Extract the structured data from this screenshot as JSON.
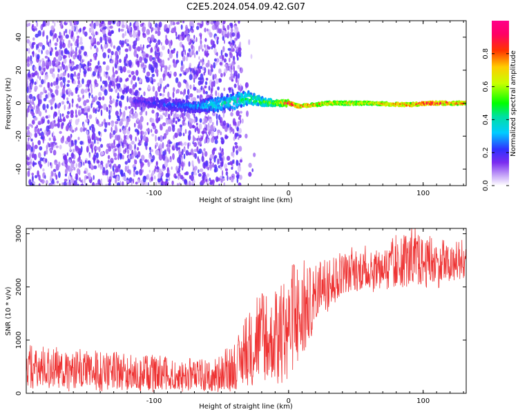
{
  "title": "C2E5.2024.054.09.42.G07",
  "chart_data": [
    {
      "type": "heatmap",
      "xlabel": "Height of straight line (km)",
      "ylabel": "Frequency (Hz)",
      "xlim": [
        -195,
        132
      ],
      "ylim": [
        -50,
        50
      ],
      "xticks": [
        -100,
        0,
        100
      ],
      "yticks": [
        -40,
        -20,
        0,
        20,
        40
      ],
      "signal_band": [
        {
          "x": -110,
          "y": 1,
          "w": 3,
          "amp": 0.2
        },
        {
          "x": -90,
          "y": -1,
          "w": 4,
          "amp": 0.25
        },
        {
          "x": -70,
          "y": -2,
          "w": 4,
          "amp": 0.3
        },
        {
          "x": -55,
          "y": -1,
          "w": 5,
          "amp": 0.4
        },
        {
          "x": -40,
          "y": 1,
          "w": 6,
          "amp": 0.45
        },
        {
          "x": -30,
          "y": 3,
          "w": 5,
          "amp": 0.5
        },
        {
          "x": -20,
          "y": 1,
          "w": 3,
          "amp": 0.55
        },
        {
          "x": -10,
          "y": 0,
          "w": 2,
          "amp": 0.65
        },
        {
          "x": 0,
          "y": 0,
          "w": 2,
          "amp": 0.95
        },
        {
          "x": 8,
          "y": -2,
          "w": 2,
          "amp": 0.85
        },
        {
          "x": 30,
          "y": 0,
          "w": 2,
          "amp": 0.75
        },
        {
          "x": 60,
          "y": 0,
          "w": 2,
          "amp": 0.72
        },
        {
          "x": 90,
          "y": -1,
          "w": 2,
          "amp": 0.85
        },
        {
          "x": 105,
          "y": 0,
          "w": 2,
          "amp": 0.95
        },
        {
          "x": 132,
          "y": 0,
          "w": 2,
          "amp": 0.8
        }
      ]
    },
    {
      "type": "line",
      "xlabel": "Height of straight line (km)",
      "ylabel": "SNR (10 * v/v)",
      "xlim": [
        -195,
        132
      ],
      "ylim": [
        0,
        3100
      ],
      "xticks": [
        -100,
        0,
        100
      ],
      "yticks": [
        0,
        1000,
        2000,
        3000
      ],
      "series": [
        {
          "color": "#ee3333",
          "envelope": [
            {
              "x": -195,
              "low": 50,
              "high": 900
            },
            {
              "x": -150,
              "low": 30,
              "high": 800
            },
            {
              "x": -100,
              "low": 20,
              "high": 700
            },
            {
              "x": -60,
              "low": 0,
              "high": 650
            },
            {
              "x": -40,
              "low": 0,
              "high": 900
            },
            {
              "x": -25,
              "low": 50,
              "high": 1800
            },
            {
              "x": -10,
              "low": 100,
              "high": 1900
            },
            {
              "x": 0,
              "low": 200,
              "high": 2300
            },
            {
              "x": 10,
              "low": 300,
              "high": 2500
            },
            {
              "x": 20,
              "low": 1300,
              "high": 2500
            },
            {
              "x": 40,
              "low": 1800,
              "high": 2700
            },
            {
              "x": 60,
              "low": 1900,
              "high": 2700
            },
            {
              "x": 80,
              "low": 1900,
              "high": 2900
            },
            {
              "x": 95,
              "low": 1900,
              "high": 3100
            },
            {
              "x": 110,
              "low": 1900,
              "high": 2850
            },
            {
              "x": 132,
              "low": 2100,
              "high": 2800
            }
          ]
        }
      ]
    }
  ],
  "colorbar": {
    "label": "Normalized spectral amplitude",
    "range": [
      0,
      1
    ],
    "ticks": [
      0.0,
      0.2,
      0.4,
      0.6,
      0.8
    ],
    "tick_labels": [
      "0.0",
      "0.2",
      "0.4",
      "0.6",
      "0.8"
    ]
  }
}
